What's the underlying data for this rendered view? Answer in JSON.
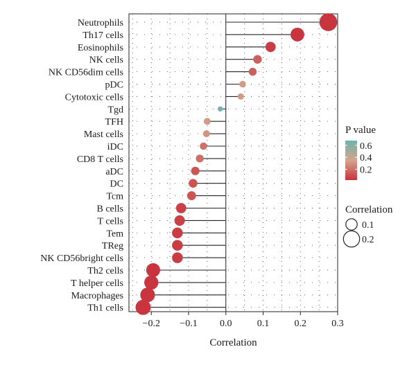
{
  "chart_data": {
    "type": "scatter",
    "subtype": "lollipop",
    "categories": [
      "Neutrophils",
      "Th17 cells",
      "Eosinophils",
      "NK cells",
      "NK CD56dim cells",
      "pDC",
      "Cytotoxic cells",
      "Tgd",
      "TFH",
      "Mast cells",
      "iDC",
      "CD8 T cells",
      "aDC",
      "DC",
      "Tcm",
      "B cells",
      "T cells",
      "Tem",
      "TReg",
      "NK CD56bright cells",
      "Th2 cells",
      "T helper cells",
      "Macrophages",
      "Th1 cells"
    ],
    "correlation": [
      0.275,
      0.192,
      0.12,
      0.085,
      0.072,
      0.045,
      0.04,
      -0.015,
      -0.05,
      -0.052,
      -0.06,
      -0.07,
      -0.082,
      -0.088,
      -0.092,
      -0.12,
      -0.124,
      -0.13,
      -0.13,
      -0.13,
      -0.195,
      -0.2,
      -0.21,
      -0.222
    ],
    "p_value": [
      0.03,
      0.03,
      0.05,
      0.15,
      0.15,
      0.32,
      0.32,
      0.65,
      0.32,
      0.3,
      0.2,
      0.2,
      0.12,
      0.12,
      0.12,
      0.06,
      0.06,
      0.05,
      0.05,
      0.05,
      0.03,
      0.03,
      0.03,
      0.03
    ],
    "xlabel": "Correlation",
    "xlim": [
      -0.26,
      0.3
    ],
    "xticks": [
      -0.2,
      -0.1,
      0.0,
      0.1,
      0.2,
      0.3
    ],
    "xtick_labels": [
      "−0.2",
      "−0.1",
      "0.0",
      "0.1",
      "0.2",
      "0.3"
    ],
    "grid": "dotted",
    "legend": {
      "placement": "right",
      "color_title": "P value",
      "color_ticks": [
        0.6,
        0.4,
        0.2
      ],
      "color_tick_labels": [
        "0.6",
        "0.4",
        "0.2"
      ],
      "color_range": [
        0.02,
        0.68
      ],
      "color_low": "#c8323c",
      "color_mid": "#d4a48c",
      "color_high": "#6bb5ad",
      "size_title": "Correlation",
      "size_values": [
        0.1,
        0.2
      ],
      "size_labels": [
        "0.1",
        "0.2"
      ]
    }
  }
}
